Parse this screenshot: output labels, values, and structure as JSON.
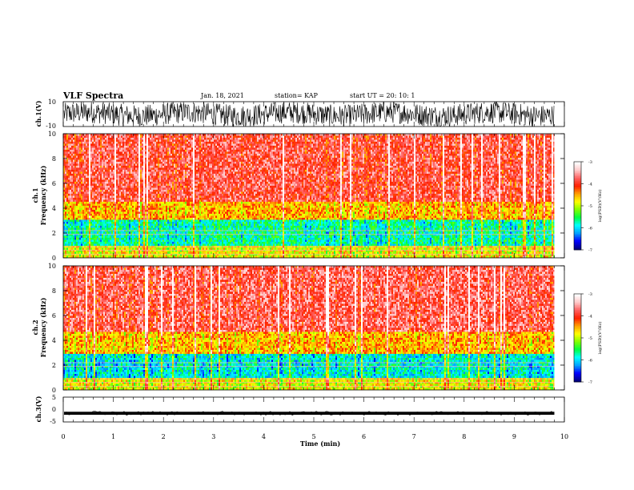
{
  "header": {
    "title": "VLF Spectra",
    "date": "Jan. 18, 2021",
    "station": "station= KAP",
    "start": "start UT =   20: 10: 1"
  },
  "colors": {
    "background": "#ffffff",
    "trace": "#000000",
    "colormap": [
      "#000080",
      "#0000ff",
      "#00a0ff",
      "#00ffff",
      "#00ff40",
      "#80ff00",
      "#ffff00",
      "#ffa000",
      "#ff2000",
      "#ff6060",
      "#ffc8c8",
      "#ffffff"
    ]
  },
  "chart_data": [
    {
      "type": "line",
      "panel": "ch1-waveform",
      "ylabel": "ch.1(V)",
      "ylim": [
        -10,
        10
      ],
      "yticks": [
        "10",
        "-10"
      ],
      "x_range_min": [
        0,
        10
      ],
      "trace_fill_fraction": 0.83,
      "description_values": {
        "typical_low": -5,
        "typical_high": 6
      }
    },
    {
      "type": "heatmap",
      "panel": "ch1-spectrogram",
      "ylabel_line1": "ch.1",
      "ylabel_line2": "Frequency (kHz)",
      "ylim": [
        0,
        10
      ],
      "yticks": [
        "0",
        "2",
        "4",
        "6",
        "8",
        "10"
      ],
      "bands_khz": [
        {
          "from": 0.0,
          "to": 1.0,
          "level": 0.55
        },
        {
          "from": 1.0,
          "to": 3.2,
          "level": 0.32
        },
        {
          "from": 3.2,
          "to": 4.6,
          "level": 0.62
        },
        {
          "from": 4.6,
          "to": 10.0,
          "level": 0.8
        }
      ],
      "colorbar": {
        "label": "log(PSD)(V²/Hz)",
        "ticks": [
          "-3",
          "-4",
          "-5",
          "-6",
          "-7"
        ],
        "range": [
          -7,
          -3
        ]
      }
    },
    {
      "type": "heatmap",
      "panel": "ch2-spectrogram",
      "ylabel_line1": "ch.2",
      "ylabel_line2": "Frequency (kHz)",
      "ylim": [
        0,
        10
      ],
      "yticks": [
        "0",
        "2",
        "4",
        "6",
        "8",
        "10"
      ],
      "bands_khz": [
        {
          "from": 0.0,
          "to": 1.0,
          "level": 0.55
        },
        {
          "from": 1.0,
          "to": 3.0,
          "level": 0.28
        },
        {
          "from": 3.0,
          "to": 4.8,
          "level": 0.62
        },
        {
          "from": 4.8,
          "to": 10.0,
          "level": 0.82
        }
      ],
      "colorbar": {
        "label": "log(PSD)(V²/Hz)",
        "ticks": [
          "-3",
          "-4",
          "-5",
          "-6",
          "-7"
        ],
        "range": [
          -7,
          -3
        ]
      }
    },
    {
      "type": "line",
      "panel": "ch3-waveform",
      "ylabel": "ch.3(V)",
      "ylim": [
        -5,
        5
      ],
      "yticks": [
        "5",
        "0",
        "-5"
      ],
      "trace_center": -1.5,
      "trace_halfwidth": 0.6
    }
  ],
  "xaxis": {
    "label": "Time (min)",
    "range": [
      0,
      10
    ],
    "ticks": [
      "0",
      "1",
      "2",
      "3",
      "4",
      "5",
      "6",
      "7",
      "8",
      "9",
      "10"
    ],
    "data_end": 9.8
  }
}
